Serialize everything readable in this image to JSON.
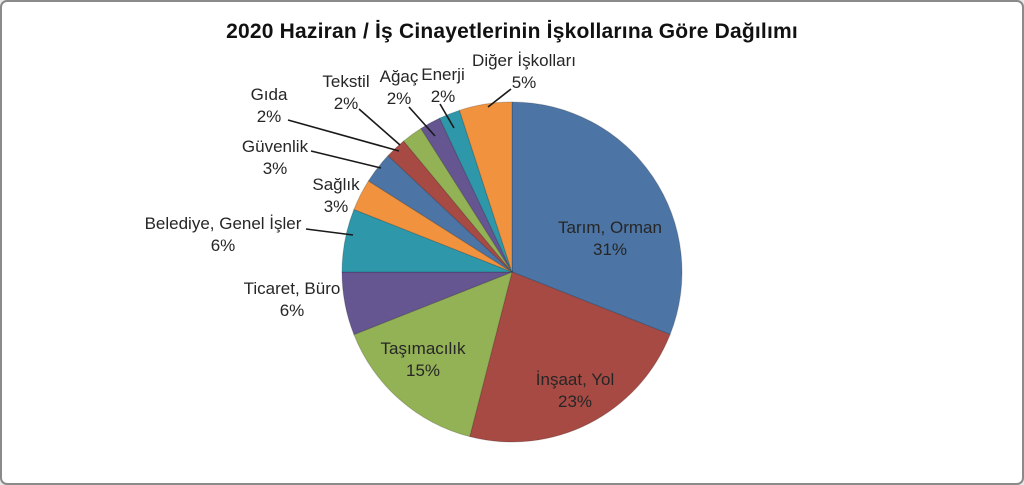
{
  "header": {
    "title": "2020 Haziran / İş Cinayetlerinin İşkollarına Göre Dağılımı"
  },
  "palette": {
    "blue": "#4c74a4",
    "red": "#a84a44",
    "green": "#93b155",
    "purple": "#655590",
    "teal": "#2e97a9",
    "orange": "#f0923e"
  },
  "frame": {
    "background": "#ffffff",
    "border_color": "#8a8a8a"
  },
  "chart_data": {
    "type": "pie",
    "title": "2020 Haziran / İş Cinayetlerinin İşkollarına Göre Dağılımı",
    "unit": "percent",
    "start_angle_deg": 0,
    "direction": "clockwise",
    "legend": "none",
    "total": 100,
    "slices": [
      {
        "label": "Tarım, Orman",
        "value": 31,
        "pct": "31%",
        "color": "#4c74a4",
        "label_placement": "inside"
      },
      {
        "label": "İnşaat, Yol",
        "value": 23,
        "pct": "23%",
        "color": "#a84a44",
        "label_placement": "inside"
      },
      {
        "label": "Taşımacılık",
        "value": 15,
        "pct": "15%",
        "color": "#93b155",
        "label_placement": "inside"
      },
      {
        "label": "Ticaret, Büro",
        "value": 6,
        "pct": "6%",
        "color": "#655590",
        "label_placement": "outside"
      },
      {
        "label": "Belediye, Genel İşler",
        "value": 6,
        "pct": "6%",
        "color": "#2e97a9",
        "label_placement": "outside"
      },
      {
        "label": "Sağlık",
        "value": 3,
        "pct": "3%",
        "color": "#f0923e",
        "label_placement": "outside"
      },
      {
        "label": "Güvenlik",
        "value": 3,
        "pct": "3%",
        "color": "#4c74a4",
        "label_placement": "outside"
      },
      {
        "label": "Gıda",
        "value": 2,
        "pct": "2%",
        "color": "#a84a44",
        "label_placement": "outside"
      },
      {
        "label": "Tekstil",
        "value": 2,
        "pct": "2%",
        "color": "#93b155",
        "label_placement": "outside"
      },
      {
        "label": "Ağaç",
        "value": 2,
        "pct": "2%",
        "color": "#655590",
        "label_placement": "outside"
      },
      {
        "label": "Enerji",
        "value": 2,
        "pct": "2%",
        "color": "#2e97a9",
        "label_placement": "outside"
      },
      {
        "label": "Diğer İşkolları",
        "value": 5,
        "pct": "5%",
        "color": "#f0923e",
        "label_placement": "outside"
      }
    ]
  }
}
